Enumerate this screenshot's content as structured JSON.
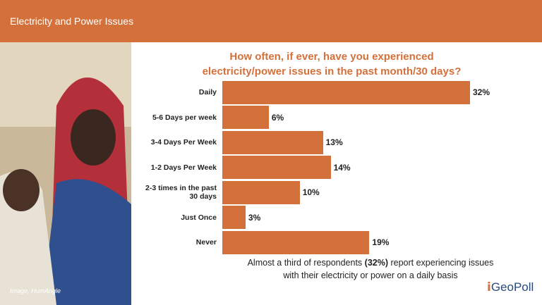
{
  "header": {
    "title": "Electricity and Power Issues"
  },
  "image_caption": "Image, HumAngle",
  "logo": "GeoPoll",
  "chart_data": {
    "type": "bar",
    "title": "How often, if ever, have you experienced electricity/power issues in the past month/30 days?",
    "categories": [
      "Daily",
      "5-6 Days per week",
      "3-4 Days  Per Week",
      "1-2 Days  Per Week",
      "2-3 times  in the past 30 days",
      "Just Once",
      "Never"
    ],
    "values": [
      32,
      6,
      13,
      14,
      10,
      3,
      19
    ],
    "value_labels": [
      "32%",
      "6%",
      "13%",
      "14%",
      "10%",
      "3%",
      "19%"
    ],
    "color": "#d4703a",
    "annotation": {
      "before": "Almost a third of respondents ",
      "highlight": "(32%)",
      "after": " report experiencing issues with their electricity or power on a daily basis"
    }
  }
}
